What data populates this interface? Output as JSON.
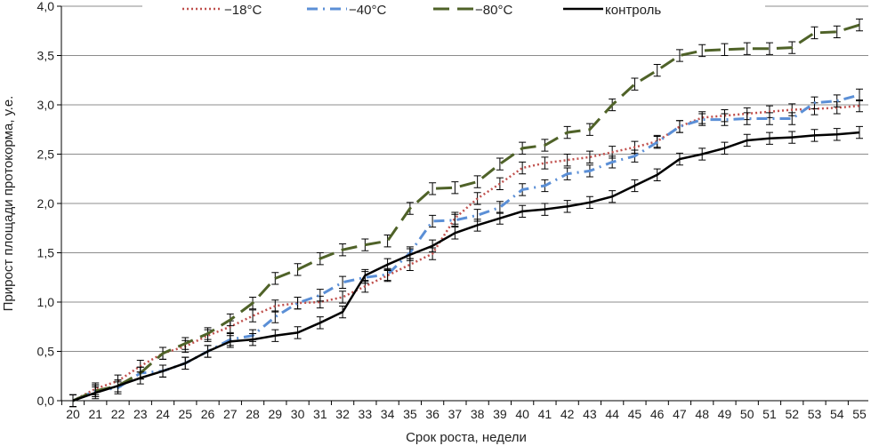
{
  "chart_data": {
    "type": "line",
    "xlabel": "Срок роста, недели",
    "ylabel": "Прирост площади протокорма, у.е.",
    "ylim": [
      0,
      4
    ],
    "yticks": [
      "0,0",
      "0,5",
      "1,0",
      "1,5",
      "2,0",
      "2,5",
      "3,0",
      "3,5",
      "4,0"
    ],
    "x": [
      20,
      21,
      22,
      23,
      24,
      25,
      26,
      27,
      28,
      29,
      30,
      31,
      32,
      33,
      34,
      35,
      36,
      37,
      38,
      39,
      40,
      41,
      42,
      43,
      44,
      45,
      46,
      47,
      48,
      49,
      50,
      51,
      52,
      53,
      54,
      55
    ],
    "grid": true,
    "legend": "top",
    "series": [
      {
        "name": "−18°C",
        "color": "#c0504d",
        "style": "dotted",
        "values": [
          0,
          0.12,
          0.2,
          0.35,
          0.48,
          0.55,
          0.66,
          0.75,
          0.86,
          0.96,
          0.99,
          1.0,
          1.05,
          1.16,
          1.27,
          1.38,
          1.49,
          1.85,
          2.05,
          2.2,
          2.36,
          2.41,
          2.44,
          2.47,
          2.52,
          2.57,
          2.63,
          2.78,
          2.87,
          2.89,
          2.91,
          2.93,
          2.95,
          2.96,
          2.97,
          2.99
        ],
        "error": 0.06
      },
      {
        "name": "−40°C",
        "color": "#5b8fd6",
        "style": "dash-dot",
        "values": [
          0,
          0.1,
          0.13,
          0.28,
          0.3,
          0.38,
          0.5,
          0.62,
          0.66,
          0.85,
          0.99,
          1.07,
          1.2,
          1.25,
          1.28,
          1.5,
          1.82,
          1.83,
          1.88,
          1.96,
          2.14,
          2.18,
          2.3,
          2.33,
          2.42,
          2.48,
          2.62,
          2.78,
          2.85,
          2.85,
          2.86,
          2.86,
          2.86,
          3.02,
          3.04,
          3.1
        ],
        "error": 0.06
      },
      {
        "name": "−80°C",
        "color": "#4f6228",
        "style": "long-dash",
        "values": [
          0,
          0.1,
          0.15,
          0.28,
          0.48,
          0.58,
          0.68,
          0.82,
          0.99,
          1.24,
          1.33,
          1.44,
          1.53,
          1.58,
          1.62,
          1.95,
          2.15,
          2.16,
          2.22,
          2.4,
          2.56,
          2.59,
          2.72,
          2.75,
          3.0,
          3.21,
          3.35,
          3.5,
          3.55,
          3.56,
          3.57,
          3.57,
          3.58,
          3.73,
          3.74,
          3.81
        ],
        "error": 0.06
      },
      {
        "name": "контроль",
        "color": "#000000",
        "style": "solid",
        "values": [
          0,
          0.08,
          0.15,
          0.23,
          0.3,
          0.38,
          0.5,
          0.6,
          0.62,
          0.66,
          0.69,
          0.79,
          0.9,
          1.27,
          1.38,
          1.48,
          1.57,
          1.7,
          1.78,
          1.85,
          1.92,
          1.94,
          1.97,
          2.01,
          2.07,
          2.18,
          2.29,
          2.45,
          2.5,
          2.56,
          2.64,
          2.66,
          2.67,
          2.69,
          2.7,
          2.72
        ],
        "error": 0.06
      }
    ]
  }
}
